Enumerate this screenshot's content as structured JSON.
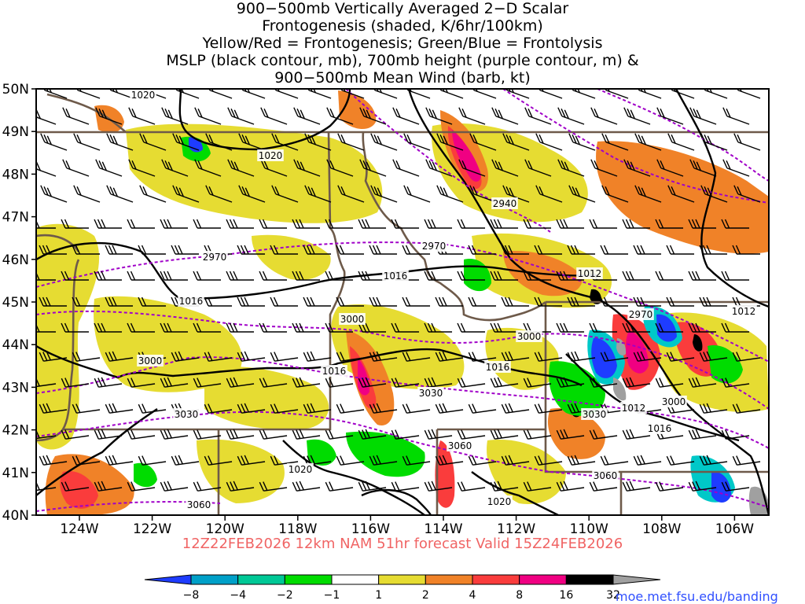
{
  "title": {
    "lines": [
      "900−500mb Vertically Averaged 2−D Scalar",
      "Frontogenesis (shaded, K/6hr/100km)",
      "Yellow/Red = Frontogenesis;  Green/Blue = Frontolysis",
      "MSLP (black contour, mb), 700mb height (purple contour, m) &",
      "900−500mb Mean Wind (barb, kt)"
    ]
  },
  "map": {
    "lat_labels": [
      "50N",
      "49N",
      "48N",
      "47N",
      "46N",
      "45N",
      "44N",
      "43N",
      "42N",
      "41N",
      "40N"
    ],
    "lon_labels": [
      "124W",
      "122W",
      "120W",
      "118W",
      "116W",
      "114W",
      "112W",
      "110W",
      "108W",
      "106W"
    ],
    "mslp_labels": [
      "1020",
      "1020",
      "1016",
      "1016",
      "1016",
      "1016",
      "1012",
      "1012",
      "1012",
      "1016",
      "1020",
      "1020"
    ],
    "height_labels": [
      "2940",
      "2970",
      "2970",
      "2970",
      "3000",
      "3000",
      "3000",
      "3000",
      "3030",
      "3030",
      "3030",
      "3060",
      "3060",
      "3060"
    ],
    "colors": {
      "frontolysis_strong": "#1e3cff",
      "frontolysis": "#00c8c8",
      "frontolysis_weak": "#00dc00",
      "frontogenesis_weak": "#e6dc32",
      "frontogenesis": "#f08228",
      "frontogenesis_strong": "#fa3c3c",
      "frontogenesis_vstrong": "#f00082",
      "extreme": "#000000",
      "mslp_contour": "#000000",
      "height_contour": "#a000c8",
      "borders": "#6e5a4a"
    }
  },
  "forecast_info": "12Z22FEB2026 12km NAM 51hr forecast Valid 15Z24FEB2026",
  "colorbar": {
    "labels": [
      "−8",
      "−4",
      "−2",
      "−1",
      "1",
      "2",
      "4",
      "8",
      "16",
      "32"
    ],
    "colors": [
      "#1e3cff",
      "#00a0c8",
      "#00c896",
      "#00dc00",
      "#ffffff",
      "#e6dc32",
      "#f08228",
      "#fa3c3c",
      "#f00082",
      "#000000",
      "#a0a0a0"
    ]
  },
  "credit": "moe.met.fsu.edu/banding"
}
